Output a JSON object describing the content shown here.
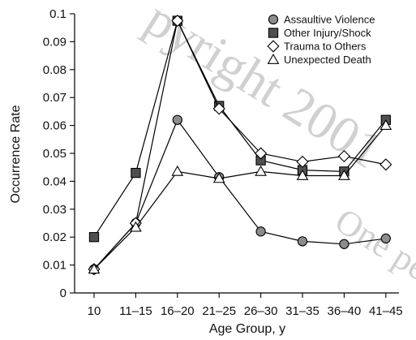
{
  "chart_data": {
    "type": "line",
    "xlabel": "Age Group, y",
    "ylabel": "Occurrence Rate",
    "categories": [
      "10",
      "11–15",
      "16–20",
      "21–25",
      "26–30",
      "31–35",
      "36–40",
      "41–45"
    ],
    "ylim": [
      0,
      0.1
    ],
    "yticks": [
      0,
      0.01,
      0.02,
      0.03,
      0.04,
      0.05,
      0.06,
      0.07,
      0.08,
      0.09,
      0.1
    ],
    "ytick_labels": [
      "0",
      "0.01",
      "0.02",
      "0.03",
      "0.04",
      "0.05",
      "0.06",
      "0.07",
      "0.08",
      "0.09",
      "0.1"
    ],
    "grid": false,
    "legend_position": "top-right",
    "series": [
      {
        "name": "Assaultive Violence",
        "marker": "circle",
        "fill": "#8c8c8c",
        "values": [
          0.0085,
          0.025,
          0.062,
          0.0415,
          0.022,
          0.0185,
          0.0175,
          0.0195
        ]
      },
      {
        "name": "Other Injury/Shock",
        "marker": "square",
        "fill": "#505050",
        "values": [
          0.02,
          0.043,
          0.0975,
          0.067,
          0.0475,
          0.044,
          0.0435,
          0.062
        ]
      },
      {
        "name": "Trauma to Others",
        "marker": "diamond",
        "fill": "#ffffff",
        "values": [
          0.0085,
          0.025,
          0.0975,
          0.066,
          0.05,
          0.047,
          0.049,
          0.046
        ]
      },
      {
        "name": "Unexpected Death",
        "marker": "triangle",
        "fill": "#ffffff",
        "values": [
          0.0085,
          0.0235,
          0.0435,
          0.041,
          0.0435,
          0.042,
          0.042,
          0.06
        ]
      }
    ]
  }
}
